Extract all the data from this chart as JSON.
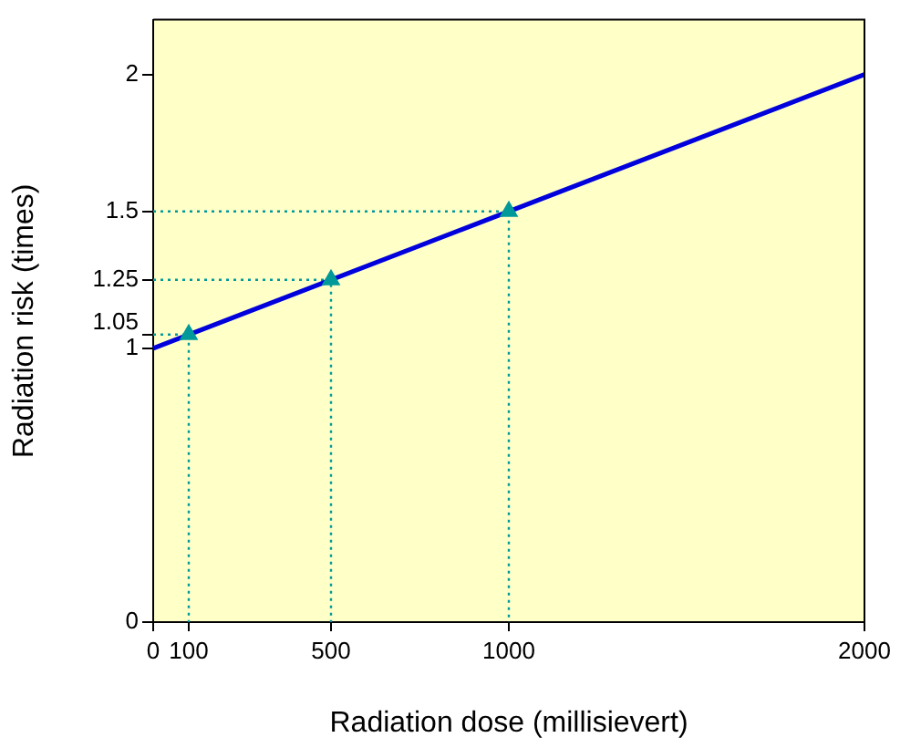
{
  "chart_data": {
    "type": "line",
    "xlabel": "Radiation dose (millisievert)",
    "ylabel": "Radiation risk (times)",
    "xlim": [
      0,
      2000
    ],
    "ylim": [
      0,
      2.2
    ],
    "xticks": [
      0,
      100,
      500,
      1000,
      2000
    ],
    "yticks": [
      0,
      1,
      1.05,
      1.25,
      1.5,
      2
    ],
    "grid": false,
    "legend": false,
    "series": [
      {
        "color": "#0000dd",
        "x": [
          0,
          2000
        ],
        "values": [
          1,
          2
        ],
        "marker": "none"
      },
      {
        "type": "scatter",
        "color": "#009999",
        "x": [
          100,
          500,
          1000
        ],
        "values": [
          1.05,
          1.25,
          1.5
        ],
        "marker": "triangle"
      },
      {
        "type": "line",
        "color": "#009999",
        "x": [
          0,
          100,
          100
        ],
        "values": [
          1.05,
          1.05,
          0
        ],
        "line_style": "dotted"
      },
      {
        "type": "line",
        "color": "#009999",
        "x": [
          0,
          500,
          500
        ],
        "values": [
          1.25,
          1.25,
          0
        ],
        "line_style": "dotted"
      },
      {
        "type": "line",
        "color": "#009999",
        "x": [
          0,
          1000,
          1000
        ],
        "values": [
          1.5,
          1.5,
          0
        ],
        "line_style": "dotted"
      }
    ]
  }
}
